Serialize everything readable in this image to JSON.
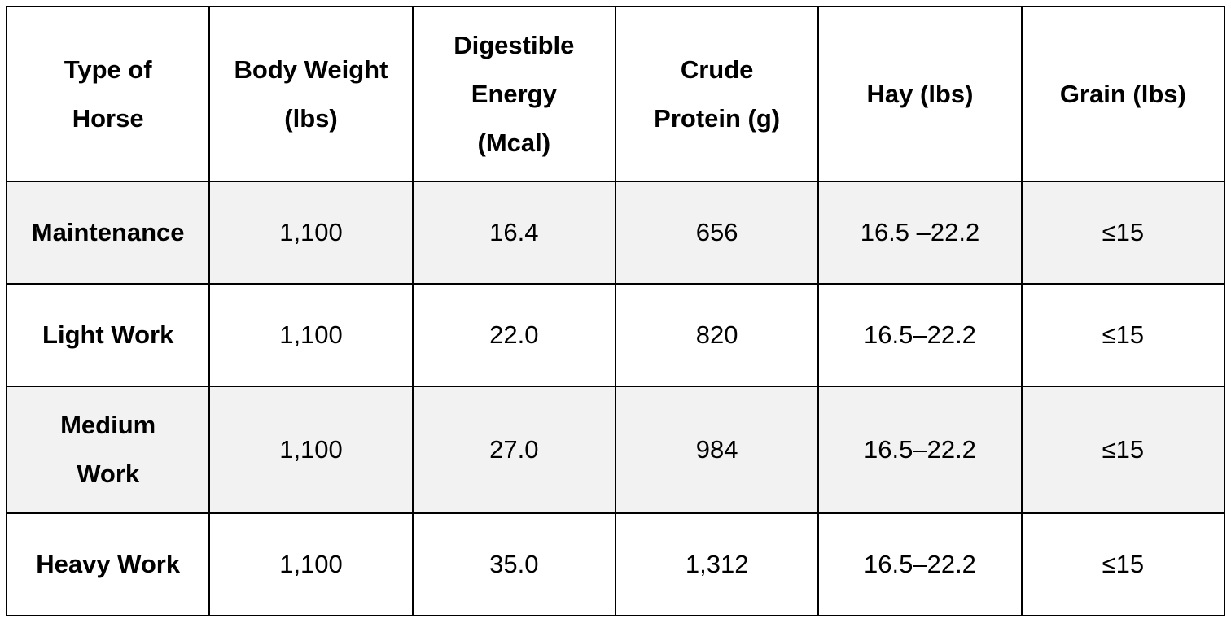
{
  "table": {
    "header": [
      [
        "Type of",
        "Horse"
      ],
      [
        "Body Weight",
        "(lbs)"
      ],
      [
        "Digestible",
        "Energy",
        "(Mcal)"
      ],
      [
        "Crude",
        "Protein (g)"
      ],
      [
        "Hay (lbs)"
      ],
      [
        "Grain (lbs)"
      ]
    ],
    "rows": [
      {
        "type": [
          "Maintenance"
        ],
        "cells": [
          "1,100",
          "16.4",
          "656",
          "16.5 –22.2",
          "≤15"
        ]
      },
      {
        "type": [
          "Light Work"
        ],
        "cells": [
          "1,100",
          "22.0",
          "820",
          "16.5–22.2",
          "≤15"
        ]
      },
      {
        "type": [
          "Medium",
          "Work"
        ],
        "cells": [
          "1,100",
          "27.0",
          "984",
          "16.5–22.2",
          "≤15"
        ]
      },
      {
        "type": [
          "Heavy Work"
        ],
        "cells": [
          "1,100",
          "35.0",
          "1,312",
          "16.5–22.2",
          "≤15"
        ]
      }
    ]
  }
}
